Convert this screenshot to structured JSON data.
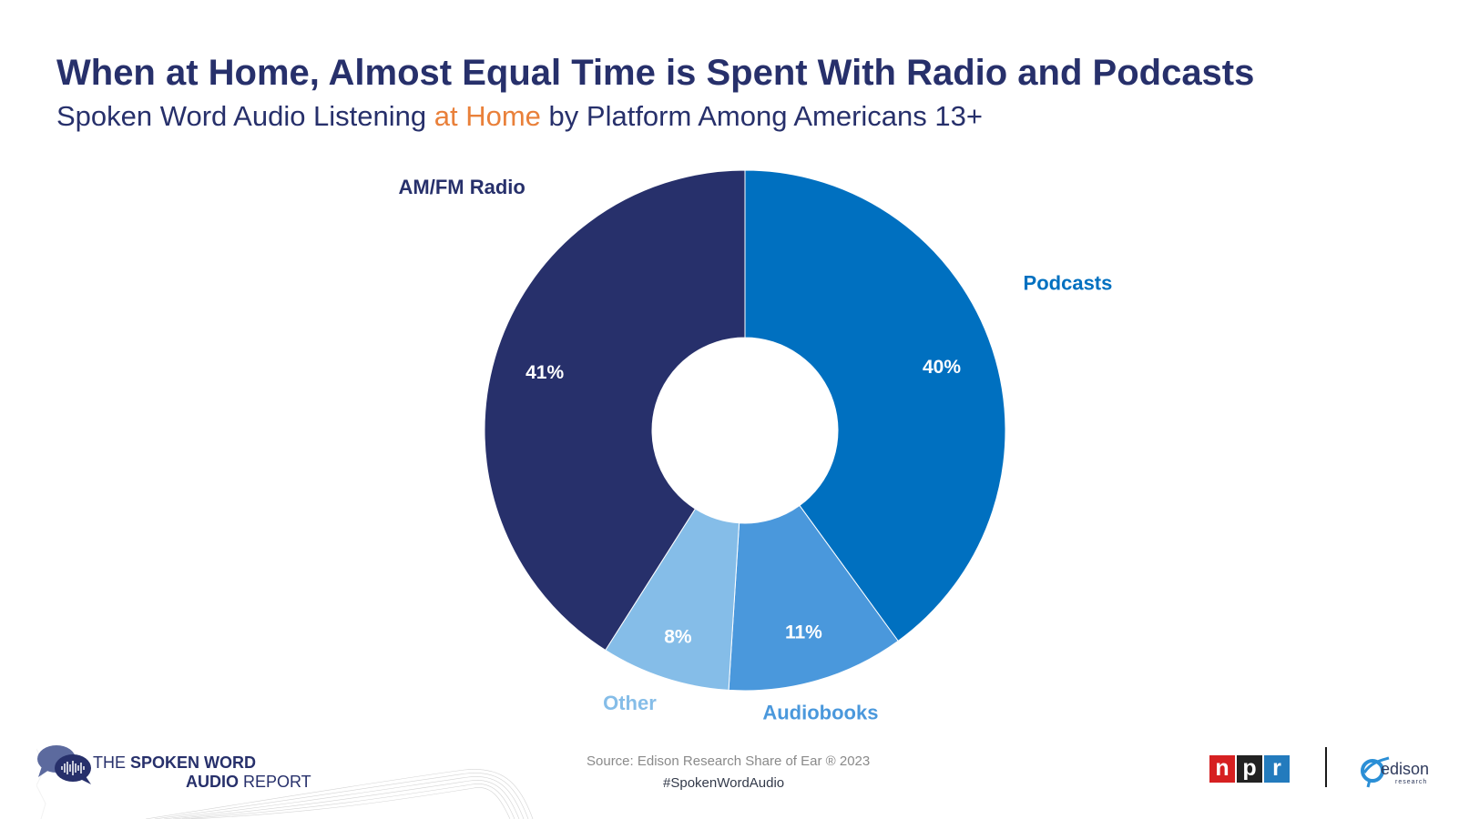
{
  "header": {
    "title": "When at Home, Almost Equal Time is Spent With Radio and Podcasts",
    "subtitle_pre": "Spoken Word Audio Listening ",
    "subtitle_highlight": "at Home",
    "subtitle_post": " by Platform Among Americans 13+"
  },
  "chart_data": {
    "type": "pie",
    "variant": "donut",
    "title": "When at Home, Almost Equal Time is Spent With Radio and Podcasts",
    "subtitle": "Spoken Word Audio Listening at Home by Platform Among Americans 13+",
    "categories": [
      "Podcasts",
      "Audiobooks",
      "Other",
      "AM/FM Radio"
    ],
    "values": [
      40,
      11,
      8,
      41
    ],
    "value_labels": [
      "40%",
      "11%",
      "8%",
      "41%"
    ],
    "colors": [
      "#0070c0",
      "#4a98dc",
      "#85bde8",
      "#27306b"
    ],
    "unit": "%"
  },
  "footer": {
    "source": "Source: Edison Research Share of Ear ® 2023",
    "hashtag": "#SpokenWordAudio",
    "report_logo_line1_a": "THE ",
    "report_logo_line1_b": "SPOKEN WORD",
    "report_logo_line2_a": "AUDIO",
    "report_logo_line2_b": " REPORT",
    "npr_letters": [
      "n",
      "p",
      "r"
    ],
    "npr_colors": [
      "#d62021",
      "#222222",
      "#237bbd"
    ],
    "edison_word": "edison",
    "edison_sub": "research"
  }
}
